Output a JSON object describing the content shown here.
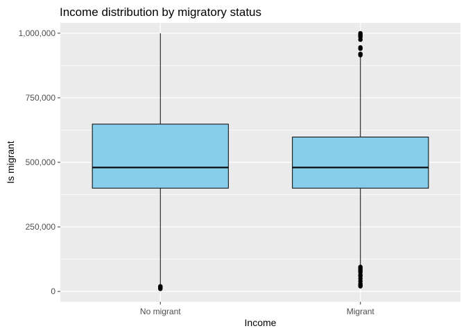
{
  "chart_data": {
    "type": "boxplot",
    "title": "Income distribution by migratory status",
    "xlabel": "Income",
    "ylabel": "Is migrant",
    "categories": [
      "No migrant",
      "Migrant"
    ],
    "ylim": [
      -40000,
      1040000
    ],
    "yticks": [
      0,
      250000,
      500000,
      750000,
      1000000
    ],
    "ytick_labels": [
      "0",
      "250,000",
      "500,000",
      "750,000",
      "1,000,000"
    ],
    "grid": true,
    "box_fill": "#87CEEB",
    "panel_background": "#EBEBEB",
    "series": [
      {
        "category": "No migrant",
        "whisker_low": 20000,
        "q1": 400000,
        "median": 480000,
        "q3": 648000,
        "whisker_high": 1000000,
        "outliers": [
          10000,
          12000,
          15000,
          18000,
          20000
        ]
      },
      {
        "category": "Migrant",
        "whisker_low": 100000,
        "q1": 400000,
        "median": 480000,
        "q3": 598000,
        "whisker_high": 910000,
        "outliers": [
          20000,
          25000,
          30000,
          40000,
          50000,
          60000,
          65000,
          75000,
          80000,
          85000,
          90000,
          95000,
          915000,
          920000,
          940000,
          945000,
          975000,
          985000,
          990000,
          995000,
          1000000
        ]
      }
    ]
  }
}
